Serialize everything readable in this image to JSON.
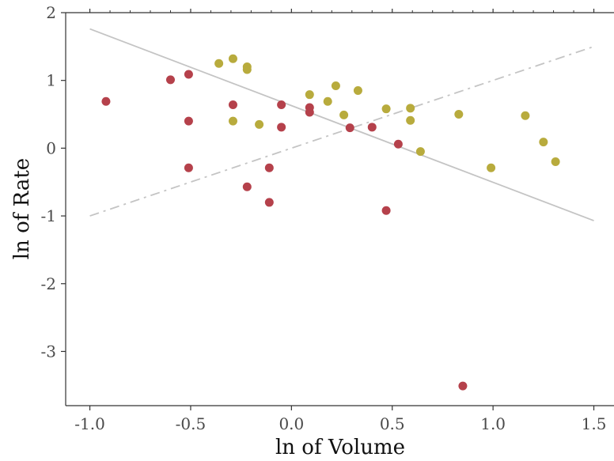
{
  "chart_data": {
    "type": "scatter",
    "title": "",
    "xlabel": "ln of Volume",
    "ylabel": "ln of Rate",
    "xlim": [
      -1.12,
      1.6
    ],
    "ylim": [
      -3.8,
      2.0
    ],
    "xticks": [
      -1.0,
      -0.5,
      0.0,
      0.5,
      1.0,
      1.5
    ],
    "xtick_labels": [
      "-1.0",
      "-0.5",
      "0.0",
      "0.5",
      "1.0",
      "1.5"
    ],
    "yticks": [
      -3,
      -2,
      -1,
      0,
      1,
      2
    ],
    "ytick_labels": [
      "-3",
      "-2",
      "-1",
      "0",
      "1",
      "2"
    ],
    "grid": false,
    "legend": "none",
    "series": [
      {
        "color": "#b5414b",
        "points": [
          [
            -0.92,
            0.69
          ],
          [
            -0.6,
            1.01
          ],
          [
            -0.51,
            1.09
          ],
          [
            -0.51,
            0.4
          ],
          [
            -0.51,
            -0.29
          ],
          [
            -0.29,
            0.64
          ],
          [
            -0.22,
            -0.57
          ],
          [
            -0.11,
            -0.29
          ],
          [
            -0.11,
            -0.8
          ],
          [
            -0.05,
            0.64
          ],
          [
            -0.05,
            0.31
          ],
          [
            0.09,
            0.6
          ],
          [
            0.09,
            0.53
          ],
          [
            0.29,
            0.3
          ],
          [
            0.4,
            0.31
          ],
          [
            0.47,
            -0.92
          ],
          [
            0.53,
            0.06
          ],
          [
            0.85,
            -3.51
          ]
        ]
      },
      {
        "color": "#b8ab3d",
        "points": [
          [
            -0.36,
            1.25
          ],
          [
            -0.29,
            1.32
          ],
          [
            -0.22,
            1.2
          ],
          [
            -0.22,
            1.16
          ],
          [
            -0.29,
            0.4
          ],
          [
            -0.16,
            0.35
          ],
          [
            0.09,
            0.79
          ],
          [
            0.18,
            0.69
          ],
          [
            0.22,
            0.92
          ],
          [
            0.26,
            0.49
          ],
          [
            0.33,
            0.85
          ],
          [
            0.47,
            0.58
          ],
          [
            0.59,
            0.59
          ],
          [
            0.59,
            0.41
          ],
          [
            0.64,
            -0.05
          ],
          [
            0.83,
            0.5
          ],
          [
            0.99,
            -0.29
          ],
          [
            1.16,
            0.48
          ],
          [
            1.25,
            0.09
          ],
          [
            1.31,
            -0.2
          ]
        ]
      }
    ],
    "lines": [
      {
        "style": "solid",
        "color": "#c4c4c4",
        "from": [
          -1.0,
          1.76
        ],
        "to": [
          1.5,
          -1.07
        ]
      },
      {
        "style": "dashdot",
        "color": "#c4c4c4",
        "from": [
          -1.0,
          -1.0
        ],
        "to": [
          1.5,
          1.5
        ]
      }
    ]
  }
}
